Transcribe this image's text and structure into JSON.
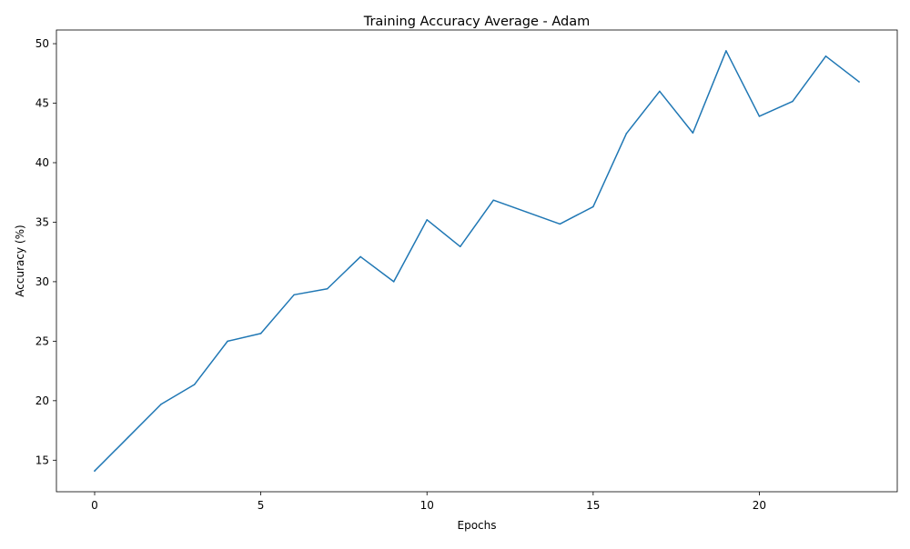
{
  "chart_data": {
    "type": "line",
    "title": "Training Accuracy Average - Adam",
    "xlabel": "Epochs",
    "ylabel": "Accuracy (%)",
    "x": [
      0,
      1,
      2,
      3,
      4,
      5,
      6,
      7,
      8,
      9,
      10,
      11,
      12,
      13,
      14,
      15,
      16,
      17,
      18,
      19,
      20,
      21,
      22,
      23
    ],
    "series": [
      {
        "values": [
          14.1,
          16.9,
          19.7,
          21.35,
          25.0,
          25.65,
          28.9,
          29.4,
          32.1,
          30.0,
          35.2,
          32.95,
          36.85,
          35.85,
          34.85,
          36.3,
          42.45,
          46.0,
          42.5,
          49.4,
          43.9,
          45.15,
          48.95,
          46.8
        ],
        "color": "#1f77b4"
      }
    ],
    "xlim": [
      -1.15,
      24.15
    ],
    "ylim": [
      12.35,
      51.15
    ],
    "xticks": [
      0,
      5,
      10,
      15,
      20
    ],
    "yticks": [
      15,
      20,
      25,
      30,
      35,
      40,
      45,
      50
    ],
    "grid": false,
    "legend": "none"
  }
}
